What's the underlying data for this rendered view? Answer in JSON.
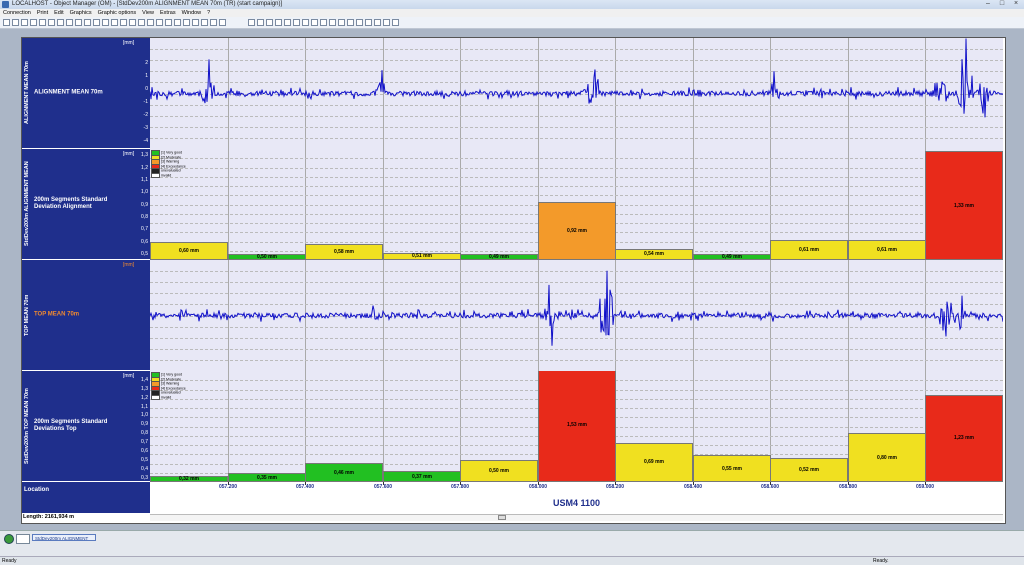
{
  "window": {
    "title": "LOCALHOST - Object Manager (OM) - [StdDev200m ALIGNMENT MEAN 70m (TR) (start campaign)]"
  },
  "menu": [
    "Connection",
    "Print",
    "Edit",
    "Graphics",
    "Graphic options",
    "View",
    "Extras",
    "Window",
    "?"
  ],
  "panels": {
    "alignment": {
      "vlabel": "ALIGNMENT MEAN 70m",
      "label": "ALIGNMENT MEAN 70m",
      "unit": "[mm]",
      "ticks": [
        "2",
        "1",
        "0",
        "-1",
        "-2",
        "-3",
        "-4"
      ]
    },
    "std_alignment": {
      "vlabel": "StdDev200m ALIGNMENT MEAN",
      "label": "200m Segments Standard Deviation Alignment",
      "unit": "[mm]",
      "ticks": [
        "1,3",
        "1,2",
        "1,1",
        "1,0",
        "0,9",
        "0,8",
        "0,7",
        "0,6",
        "0,5"
      ]
    },
    "top": {
      "vlabel": "TOP MEAN 70m",
      "label": "TOP MEAN 70m",
      "unit": "[mm]"
    },
    "std_top": {
      "vlabel": "StdDev200m TOP MEAN 70m",
      "label": "200m Segments Standard Deviations Top",
      "unit": "[mm]",
      "ticks": [
        "1,4",
        "1,3",
        "1,2",
        "1,1",
        "1,0",
        "0,9",
        "0,8",
        "0,7",
        "0,6",
        "0,5",
        "0,4",
        "0,3"
      ]
    },
    "location": {
      "label": "Location"
    }
  },
  "legend": [
    {
      "label": "[1] Very good",
      "color": "#22c022"
    },
    {
      "label": "[2] Moderate",
      "color": "#f0e020"
    },
    {
      "label": "[3] Warning",
      "color": "#f39a2a"
    },
    {
      "label": "[4] Exceedance",
      "color": "#e82a1a"
    },
    {
      "label": "unevaluated",
      "color": "#222222"
    },
    {
      "label": "invalid",
      "color": "#ffffff"
    }
  ],
  "chart_data": [
    {
      "type": "bar",
      "title": "200m Segments Standard Deviation Alignment",
      "ylabel": "[mm]",
      "ylim": [
        0.45,
        1.35
      ],
      "values": [
        0.6,
        0.5,
        0.58,
        0.51,
        0.49,
        0.92,
        0.54,
        0.49,
        0.61,
        0.61,
        1.33
      ],
      "labels": [
        "0,60 mm",
        "0,50 mm",
        "0,58 mm",
        "0,51 mm",
        "0,49 mm",
        "0,92 mm",
        "0,54 mm",
        "0,49 mm",
        "0,61 mm",
        "0,61 mm",
        "1,33 mm"
      ],
      "colors": [
        "#f0e020",
        "#22c022",
        "#f0e020",
        "#f0e020",
        "#22c022",
        "#f39a2a",
        "#f0e020",
        "#22c022",
        "#f0e020",
        "#f0e020",
        "#e82a1a"
      ]
    },
    {
      "type": "bar",
      "title": "200m Segments Standard Deviations Top",
      "ylabel": "[mm]",
      "ylim": [
        0.25,
        1.5
      ],
      "values": [
        0.32,
        0.35,
        0.46,
        0.37,
        0.5,
        1.53,
        0.69,
        0.55,
        0.52,
        0.8,
        1.23
      ],
      "labels": [
        "0,32 mm",
        "0,35 mm",
        "0,46 mm",
        "0,37 mm",
        "0,50 mm",
        "1,53 mm",
        "0,69 mm",
        "0,55 mm",
        "0,52 mm",
        "0,80 mm",
        "1,23 mm"
      ],
      "colors": [
        "#22c022",
        "#22c022",
        "#22c022",
        "#22c022",
        "#f0e020",
        "#e82a1a",
        "#f0e020",
        "#f0e020",
        "#f0e020",
        "#f0e020",
        "#e82a1a"
      ]
    }
  ],
  "location_ticks": [
    "057.200",
    "057.400",
    "057.600",
    "057.800",
    "058.000",
    "058.200",
    "058.400",
    "058.600",
    "058.800",
    "059.000"
  ],
  "location_name": "USM4 1100",
  "length_label": "Length: 2161,934 m",
  "taskbar_tab": "StdDev200m ALIGNMENT",
  "status": {
    "left": "Ready",
    "right": "Ready."
  }
}
